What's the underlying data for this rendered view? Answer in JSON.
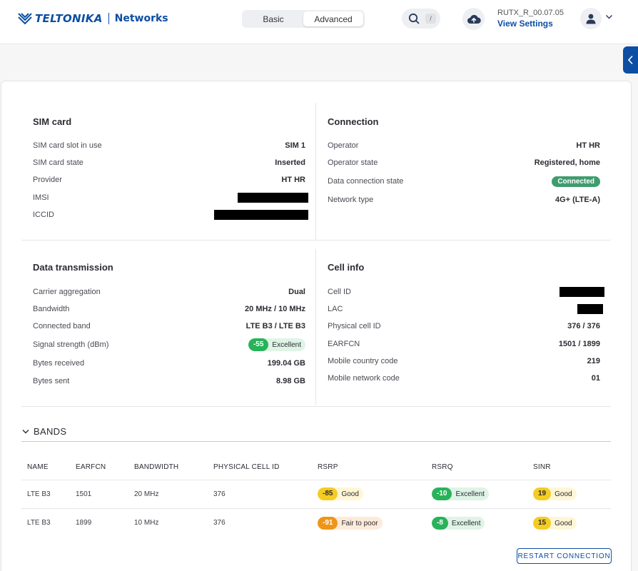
{
  "header": {
    "logo_word": "TELTONIKA",
    "logo_sub": "Networks",
    "mode_basic": "Basic",
    "mode_advanced": "Advanced",
    "search_shortcut": "/",
    "firmware_version": "RUTX_R_00.07.05",
    "view_settings": "View Settings"
  },
  "sim": {
    "title": "SIM card",
    "rows": [
      {
        "label": "SIM card slot in use",
        "value": "SIM 1"
      },
      {
        "label": "SIM card state",
        "value": "Inserted"
      },
      {
        "label": "Provider",
        "value": "HT HR"
      },
      {
        "label": "IMSI",
        "value": ""
      },
      {
        "label": "ICCID",
        "value": ""
      }
    ]
  },
  "connection": {
    "title": "Connection",
    "rows": [
      {
        "label": "Operator",
        "value": "HT HR"
      },
      {
        "label": "Operator state",
        "value": "Registered, home"
      },
      {
        "label": "Data connection state",
        "value": "Connected"
      },
      {
        "label": "Network type",
        "value": "4G+ (LTE-A)"
      }
    ]
  },
  "data_tx": {
    "title": "Data transmission",
    "rows": [
      {
        "label": "Carrier aggregation",
        "value": "Dual"
      },
      {
        "label": "Bandwidth",
        "value": "20 MHz / 10 MHz"
      },
      {
        "label": "Connected band",
        "value": "LTE B3 / LTE B3"
      },
      {
        "label": "Signal strength (dBm)",
        "value": "-55",
        "quality": "Excellent"
      },
      {
        "label": "Bytes received",
        "value": "199.04 GB"
      },
      {
        "label": "Bytes sent",
        "value": "8.98 GB"
      }
    ]
  },
  "cell": {
    "title": "Cell info",
    "rows": [
      {
        "label": "Cell ID",
        "value": ""
      },
      {
        "label": "LAC",
        "value": ""
      },
      {
        "label": "Physical cell ID",
        "value": "376 / 376"
      },
      {
        "label": "EARFCN",
        "value": "1501 / 1899"
      },
      {
        "label": "Mobile country code",
        "value": "219"
      },
      {
        "label": "Mobile network code",
        "value": "01"
      }
    ]
  },
  "bands": {
    "title": "BANDS",
    "columns": [
      "NAME",
      "EARFCN",
      "BANDWIDTH",
      "PHYSICAL CELL ID",
      "RSRP",
      "RSRQ",
      "SINR"
    ],
    "rows": [
      {
        "name": "LTE B3",
        "earfcn": "1501",
        "bandwidth": "20 MHz",
        "pci": "376",
        "rsrp": "-85",
        "rsrp_q": "Good",
        "rsrq": "-10",
        "rsrq_q": "Excellent",
        "sinr": "19",
        "sinr_q": "Good"
      },
      {
        "name": "LTE B3",
        "earfcn": "1899",
        "bandwidth": "10 MHz",
        "pci": "376",
        "rsrp": "-91",
        "rsrp_q": "Fair to poor",
        "rsrq": "-8",
        "rsrq_q": "Excellent",
        "sinr": "15",
        "sinr_q": "Good"
      }
    ]
  },
  "actions": {
    "restart": "RESTART CONNECTION"
  },
  "colors": {
    "brand": "#0c4ea3",
    "excellent": "#28b35a",
    "good": "#f4cc22",
    "fair": "#ee9518",
    "connected": "#3f9c6e"
  }
}
